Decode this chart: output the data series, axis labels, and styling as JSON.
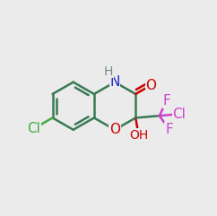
{
  "bg": "#ebebeb",
  "gc": "#3a7a55",
  "nc": "#2222cc",
  "oc": "#cc0000",
  "clc": "#44aa44",
  "clm": "#cc44cc",
  "fc": "#cc44cc",
  "hc": "#778888",
  "lw": 1.8,
  "bl": 0.115,
  "bcx": 0.33,
  "bcy": 0.51,
  "notes": "benzene center, bond length in axes [0,1] coords"
}
